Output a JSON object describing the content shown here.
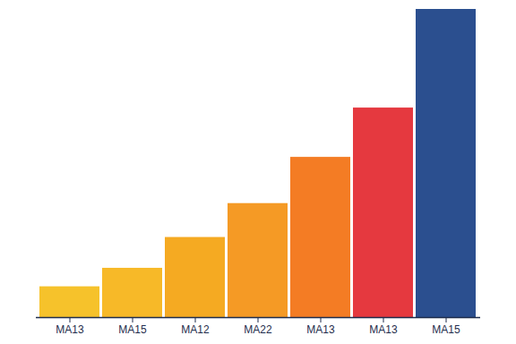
{
  "chart_data": {
    "type": "bar",
    "categories": [
      "MA13",
      "MA15",
      "MA12",
      "MA22",
      "MA13",
      "MA13",
      "MA15"
    ],
    "values": [
      10,
      16,
      26,
      37,
      52,
      68,
      100
    ],
    "colors": [
      "#f6c22b",
      "#f7b928",
      "#f5aa22",
      "#f59a25",
      "#f47c24",
      "#e5393f",
      "#2b4f8f"
    ],
    "ylim": [
      0,
      100
    ],
    "tick_labels": "x"
  }
}
